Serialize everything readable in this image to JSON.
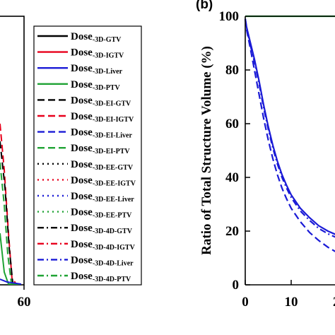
{
  "chart_data": [
    {
      "panel_label": "",
      "type": "line",
      "xlim": [
        null,
        60
      ],
      "x_ticks": [
        "60"
      ],
      "ylabel": "",
      "legend_placement": "right",
      "series": [
        {
          "name": "Dose-3D-GTV",
          "main": "Dose",
          "sub": "-3D-GTV",
          "color": "#000000",
          "dash": "solid"
        },
        {
          "name": "Dose-3D-IGTV",
          "main": "Dose",
          "sub": "-3D-IGTV",
          "color": "#e8001c",
          "dash": "solid"
        },
        {
          "name": "Dose-3D-Liver",
          "main": "Dose",
          "sub": "-3D-Liver",
          "color": "#1a1ad6",
          "dash": "solid"
        },
        {
          "name": "Dose-3D-PTV",
          "main": "Dose",
          "sub": "-3D-PTV",
          "color": "#1fa334",
          "dash": "solid"
        },
        {
          "name": "Dose-3D-EI-GTV",
          "main": "Dose",
          "sub": "-3D-EI-GTV",
          "color": "#000000",
          "dash": "dash"
        },
        {
          "name": "Dose-3D-EI-IGTV",
          "main": "Dose",
          "sub": "-3D-EI-IGTV",
          "color": "#e8001c",
          "dash": "dash"
        },
        {
          "name": "Dose-3D-EI-Liver",
          "main": "Dose",
          "sub": "-3D-EI-Liver",
          "color": "#1a1ad6",
          "dash": "dash"
        },
        {
          "name": "Dose-3D-EI-PTV",
          "main": "Dose",
          "sub": "-3D-EI-PTV",
          "color": "#1fa334",
          "dash": "dash"
        },
        {
          "name": "Dose-3D-EE-GTV",
          "main": "Dose",
          "sub": "-3D-EE-GTV",
          "color": "#000000",
          "dash": "dot"
        },
        {
          "name": "Dose-3D-EE-IGTV",
          "main": "Dose",
          "sub": "-3D-EE-IGTV",
          "color": "#e8001c",
          "dash": "dot"
        },
        {
          "name": "Dose-3D-EE-Liver",
          "main": "Dose",
          "sub": "-3D-EE-Liver",
          "color": "#1a1ad6",
          "dash": "dot"
        },
        {
          "name": "Dose-3D-EE-PTV",
          "main": "Dose",
          "sub": "-3D-EE-PTV",
          "color": "#1fa334",
          "dash": "dot"
        },
        {
          "name": "Dose-3D-4D-GTV",
          "main": "Dose",
          "sub": "-3D-4D-GTV",
          "color": "#000000",
          "dash": "dashdot"
        },
        {
          "name": "Dose-3D-4D-IGTV",
          "main": "Dose",
          "sub": "-3D-4D-IGTV",
          "color": "#e8001c",
          "dash": "dashdot"
        },
        {
          "name": "Dose-3D-4D-Liver",
          "main": "Dose",
          "sub": "-3D-4D-Liver",
          "color": "#1a1ad6",
          "dash": "dashdot"
        },
        {
          "name": "Dose-3D-4D-PTV",
          "main": "Dose",
          "sub": "-3D-4D-PTV",
          "color": "#1fa334",
          "dash": "dashdot"
        }
      ]
    },
    {
      "panel_label": "(b)",
      "type": "line",
      "ylabel": "Ratio of Total Structure Volume (%)",
      "ylim": [
        0,
        100
      ],
      "y_ticks": [
        0,
        20,
        40,
        60,
        80,
        100
      ],
      "xlim": [
        0,
        20
      ],
      "x_ticks": [
        "0",
        "10",
        "2"
      ],
      "grid": false,
      "series": [
        {
          "color": "#1fa334",
          "dash": "solid",
          "x": [
            0,
            2,
            5,
            10,
            15,
            20
          ],
          "y": [
            100,
            100,
            100,
            100,
            100,
            100
          ]
        },
        {
          "color": "#1a1ad6",
          "dash": "solid",
          "x": [
            0,
            0.3,
            1,
            2,
            3,
            4,
            5,
            6,
            7,
            8,
            9,
            10,
            12,
            14,
            16,
            18,
            20
          ],
          "y": [
            99,
            96,
            91,
            84,
            76,
            67,
            59,
            52,
            46,
            41,
            37,
            33.5,
            28.5,
            25,
            22,
            20,
            18.5
          ]
        },
        {
          "color": "#1a1ad6",
          "dash": "dash",
          "x": [
            0,
            0.3,
            1,
            2,
            3,
            4,
            5,
            6,
            7,
            8,
            9,
            10,
            12,
            14,
            16,
            18,
            20
          ],
          "y": [
            99,
            95,
            89,
            80,
            71,
            62,
            54,
            47,
            41,
            36,
            32,
            28.5,
            23.5,
            19.5,
            16.5,
            14,
            12
          ]
        },
        {
          "color": "#1a1ad6",
          "dash": "dashdot",
          "x": [
            0,
            0.3,
            1,
            2,
            3,
            4,
            5,
            6,
            7,
            8,
            9,
            10,
            12,
            14,
            16,
            18,
            20
          ],
          "y": [
            99,
            96,
            90,
            83,
            75,
            66,
            58,
            51,
            45,
            40,
            36,
            32.5,
            27.5,
            24,
            21,
            19,
            17.5
          ]
        }
      ]
    }
  ]
}
